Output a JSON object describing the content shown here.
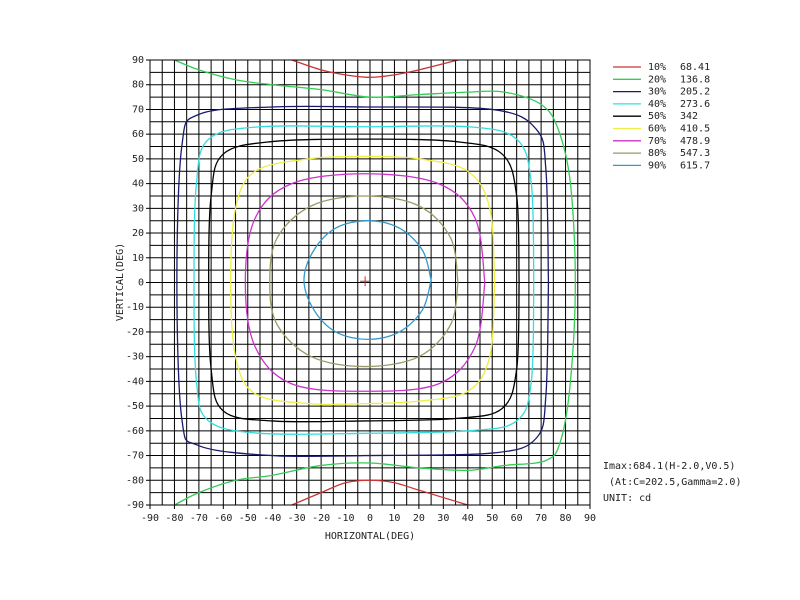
{
  "chart_data": {
    "type": "contour",
    "xlabel": "HORIZONTAL(DEG)",
    "ylabel": "VERTICAL(DEG)",
    "xlim": [
      -90,
      90
    ],
    "ylim": [
      -90,
      90
    ],
    "xticks": [
      -90,
      -80,
      -70,
      -60,
      -50,
      -40,
      -30,
      -20,
      -10,
      0,
      10,
      20,
      30,
      40,
      50,
      60,
      70,
      80,
      90
    ],
    "yticks": [
      -90,
      -80,
      -70,
      -60,
      -50,
      -40,
      -30,
      -20,
      -10,
      0,
      10,
      20,
      30,
      40,
      50,
      60,
      70,
      80,
      90
    ],
    "xgrid": [
      -90,
      -85,
      -80,
      -75,
      -70,
      -65,
      -60,
      -55,
      -50,
      -45,
      -40,
      -35,
      -30,
      -25,
      -20,
      -15,
      -10,
      -5,
      0,
      5,
      10,
      15,
      20,
      25,
      30,
      35,
      40,
      45,
      50,
      55,
      60,
      65,
      70,
      75,
      80,
      85,
      90
    ],
    "ygrid": [
      -90,
      -85,
      -80,
      -75,
      -70,
      -65,
      -60,
      -55,
      -50,
      -45,
      -40,
      -35,
      -30,
      -25,
      -20,
      -15,
      -10,
      -5,
      0,
      5,
      10,
      15,
      20,
      25,
      30,
      35,
      40,
      45,
      50,
      55,
      60,
      65,
      70,
      75,
      80,
      85,
      90
    ],
    "grid": true,
    "peak": [
      -2.0,
      0.5
    ],
    "peak_color": "#cc3333",
    "annotations": [
      "Imax:684.1(H-2.0,V0.5)",
      " (At:C=202.5,Gamma=2.0)",
      "UNIT: cd"
    ],
    "series": [
      {
        "name": "10%",
        "level": 68.41,
        "color": "#cc3333",
        "x": [
          -32,
          -20,
          -10,
          0,
          10,
          20,
          36,
          null,
          -32,
          -20,
          -10,
          0,
          10,
          20,
          40
        ],
        "y": [
          90,
          86,
          84,
          83,
          84,
          86,
          90,
          null,
          -90,
          -85,
          -81,
          -80,
          -81,
          -84,
          -90
        ]
      },
      {
        "name": "20%",
        "level": 136.8,
        "color": "#33cc55",
        "x": [
          -80,
          -70,
          -55,
          -40,
          -20,
          0,
          20,
          40,
          55,
          70,
          77,
          82,
          84,
          82,
          78,
          72,
          55,
          40,
          20,
          0,
          -20,
          -40,
          -55,
          -70,
          -80
        ],
        "y": [
          90,
          86,
          82,
          80,
          78,
          75,
          76,
          77,
          77,
          72,
          62,
          40,
          0,
          -40,
          -64,
          -72,
          -74,
          -76,
          -75,
          -73,
          -74,
          -78,
          -80,
          -85,
          -90
        ]
      },
      {
        "name": "30%",
        "level": 205.2,
        "color": "#1a1a6e",
        "x": [
          73,
          72,
          68,
          50,
          -2,
          -40,
          -70,
          -77,
          -79,
          -77,
          -70,
          -40,
          -2,
          50,
          68,
          72,
          73
        ],
        "y": [
          0,
          45,
          62,
          70,
          71,
          71,
          68,
          55,
          0,
          -55,
          -66,
          -70,
          -70,
          -69,
          -63,
          -45,
          0
        ]
      },
      {
        "name": "40%",
        "level": 273.6,
        "color": "#33dddd",
        "x": [
          67,
          66,
          60,
          40,
          -2,
          -45,
          -66,
          -71,
          -72,
          -71,
          -66,
          -45,
          -2,
          40,
          60,
          66,
          67
        ],
        "y": [
          0,
          40,
          58,
          63,
          63,
          63,
          58,
          40,
          0,
          -40,
          -56,
          -61,
          -61,
          -60,
          -56,
          -40,
          0
        ]
      },
      {
        "name": "50%",
        "level": 342.0,
        "color": "#000000",
        "x": [
          61,
          60,
          54,
          35,
          -2,
          -40,
          -60,
          -65,
          -66,
          -65,
          -60,
          -40,
          -2,
          35,
          54,
          60,
          61
        ],
        "y": [
          0,
          35,
          52,
          57,
          58,
          57,
          52,
          35,
          0,
          -35,
          -52,
          -56,
          -56,
          -55,
          -51,
          -35,
          0
        ]
      },
      {
        "name": "60%",
        "level": 410.5,
        "color": "#eeee44",
        "x": [
          51,
          49,
          40,
          20,
          -2,
          -25,
          -47,
          -55,
          -57,
          -55,
          -47,
          -25,
          -2,
          20,
          40,
          49,
          51
        ],
        "y": [
          0,
          30,
          45,
          50,
          51,
          50,
          45,
          30,
          0,
          -30,
          -45,
          -49,
          -49,
          -48,
          -44,
          -30,
          0
        ]
      },
      {
        "name": "70%",
        "level": 478.9,
        "color": "#cc33cc",
        "x": [
          47,
          43,
          28,
          -2,
          -32,
          -47,
          -51,
          -47,
          -32,
          -2,
          28,
          43,
          47
        ],
        "y": [
          0,
          26,
          40,
          44,
          40,
          26,
          0,
          -26,
          -41,
          -44,
          -41,
          -26,
          0
        ]
      },
      {
        "name": "80%",
        "level": 547.3,
        "color": "#999966",
        "x": [
          36,
          33,
          20,
          -2,
          -24,
          -38,
          -41,
          -38,
          -24,
          -2,
          20,
          33,
          36
        ],
        "y": [
          0,
          18,
          31,
          35,
          31,
          18,
          0,
          -17,
          -30,
          -34,
          -30,
          -17,
          0
        ]
      },
      {
        "name": "90%",
        "level": 615.7,
        "color": "#3399cc",
        "x": [
          25,
          21.5,
          12,
          -1,
          -14,
          -23,
          -27,
          -23,
          -14,
          -1,
          12,
          21.5,
          25
        ],
        "y": [
          1,
          13,
          22,
          25,
          22,
          13,
          1,
          -11,
          -20,
          -23,
          -20,
          -11,
          1
        ]
      }
    ]
  }
}
